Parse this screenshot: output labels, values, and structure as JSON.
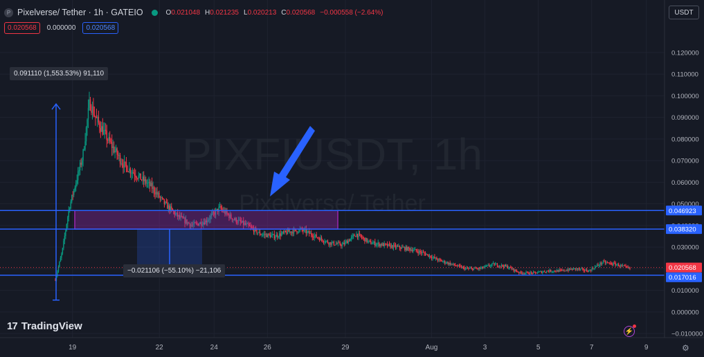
{
  "header": {
    "logo_letter": "P",
    "title": "Pixelverse/ Tether · 1h · GATEIO",
    "ohlc": {
      "o_label": "O",
      "o": "0.021048",
      "h_label": "H",
      "h": "0.021235",
      "l_label": "L",
      "l": "0.020213",
      "c_label": "C",
      "c": "0.020568",
      "change": "−0.000558 (−2.64%)"
    },
    "boxes": {
      "sell": "0.020568",
      "spread": "0.000000",
      "buy": "0.020568"
    },
    "currency": "USDT"
  },
  "watermark": {
    "symbol": "PIXFIUSDT, 1h",
    "name": "Pixelverse/ Tether"
  },
  "colors": {
    "background": "#161a25",
    "up": "#089981",
    "down": "#f23645",
    "line": "#2962ff",
    "zone": "#9c27b0",
    "arrow": "#2962ff"
  },
  "callouts": {
    "up_measure": "0.091110 (1,553.53%) 91,110",
    "down_measure": "−0.021106 (−55.10%) −21,106"
  },
  "brand": "TradingView",
  "chart_data": {
    "type": "candlestick",
    "symbol": "PIXFIUSDT",
    "timeframe": "1h",
    "x_ticks": [
      "19",
      "22",
      "24",
      "26",
      "29",
      "Aug",
      "3",
      "5",
      "7",
      "9"
    ],
    "y_ticks": [
      "0.120000",
      "0.110000",
      "0.100000",
      "0.090000",
      "0.080000",
      "0.070000",
      "0.060000",
      "0.050000",
      "0.040000",
      "0.030000",
      "0.020000",
      "0.010000",
      "0.000000",
      "−0.010000"
    ],
    "y_tick_values": [
      0.12,
      0.11,
      0.1,
      0.09,
      0.08,
      0.07,
      0.06,
      0.05,
      0.04,
      0.03,
      0.02,
      0.01,
      0.0,
      -0.01
    ],
    "ylim": [
      -0.0125,
      0.1305
    ],
    "horizontal_lines": [
      {
        "label": "0.046923",
        "value": 0.046923
      },
      {
        "label": "0.038320",
        "value": 0.03832
      },
      {
        "label": "0.017016",
        "value": 0.017016
      }
    ],
    "last_price": {
      "label": "0.020568",
      "value": 0.020568
    },
    "zone": {
      "from": 0.03832,
      "to": 0.046923
    },
    "price_path": [
      [
        0,
        0.015
      ],
      [
        0.5,
        0.028
      ],
      [
        1,
        0.048
      ],
      [
        2,
        0.072
      ],
      [
        2.5,
        0.097
      ],
      [
        3,
        0.089
      ],
      [
        4,
        0.078
      ],
      [
        5,
        0.068
      ],
      [
        6,
        0.063
      ],
      [
        7,
        0.058
      ],
      [
        8,
        0.05
      ],
      [
        9,
        0.044
      ],
      [
        10,
        0.04
      ],
      [
        11,
        0.042
      ],
      [
        12,
        0.048
      ],
      [
        13,
        0.043
      ],
      [
        14,
        0.04
      ],
      [
        15,
        0.036
      ],
      [
        16,
        0.035
      ],
      [
        17,
        0.037
      ],
      [
        18,
        0.038
      ],
      [
        19,
        0.035
      ],
      [
        20,
        0.032
      ],
      [
        21,
        0.031
      ],
      [
        22,
        0.036
      ],
      [
        23,
        0.032
      ],
      [
        24,
        0.031
      ],
      [
        25,
        0.03
      ],
      [
        26,
        0.029
      ],
      [
        27,
        0.027
      ],
      [
        28,
        0.024
      ],
      [
        29,
        0.022
      ],
      [
        30,
        0.02
      ],
      [
        31,
        0.02
      ],
      [
        32,
        0.022
      ],
      [
        33,
        0.021
      ],
      [
        34,
        0.018
      ],
      [
        35,
        0.018
      ],
      [
        36,
        0.019
      ],
      [
        37,
        0.019
      ],
      [
        38,
        0.02
      ],
      [
        39,
        0.019
      ],
      [
        40,
        0.023
      ],
      [
        41,
        0.022
      ],
      [
        42,
        0.02
      ]
    ]
  }
}
